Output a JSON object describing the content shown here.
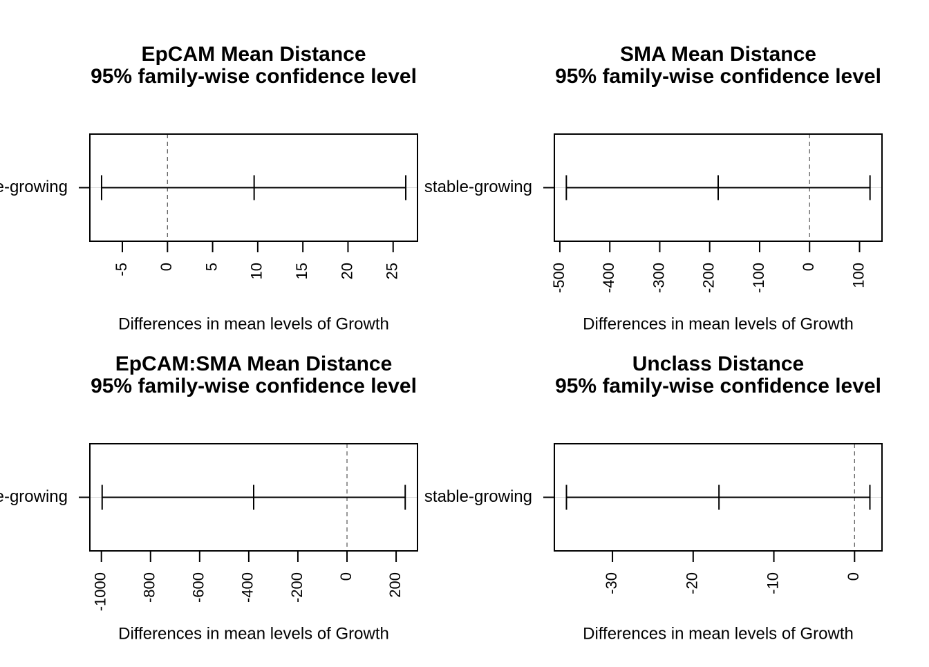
{
  "chart_data": [
    {
      "type": "errorbar",
      "title": "EpCAM Mean Distance",
      "subtitle": "95% family-wise confidence level",
      "xlabel": "Differences in mean levels of Growth",
      "comparison": "stable-growing",
      "estimate": 9.6,
      "lower": -7.3,
      "upper": 26.4,
      "xlim": [
        -8.6,
        27.7
      ],
      "ticks": [
        -5,
        0,
        5,
        10,
        15,
        20,
        25
      ],
      "tick_labels": [
        "-5",
        "0",
        "5",
        "10",
        "15",
        "20",
        "25"
      ],
      "zero_line": true
    },
    {
      "type": "errorbar",
      "title": "SMA Mean Distance",
      "subtitle": "95% family-wise confidence level",
      "xlabel": "Differences in mean levels of Growth",
      "comparison": "stable-growing",
      "estimate": -183,
      "lower": -487,
      "upper": 121,
      "xlim": [
        -511,
        145
      ],
      "ticks": [
        -500,
        -400,
        -300,
        -200,
        -100,
        0,
        100
      ],
      "tick_labels": [
        "-500",
        "-400",
        "-300",
        "-200",
        "-100",
        "0",
        "100"
      ],
      "zero_line": true
    },
    {
      "type": "errorbar",
      "title": "EpCAM:SMA Mean Distance",
      "subtitle": "95% family-wise confidence level",
      "xlabel": "Differences in mean levels of Growth",
      "comparison": "stable-growing",
      "estimate": -380,
      "lower": -997,
      "upper": 237,
      "xlim": [
        -1047,
        287
      ],
      "ticks": [
        -1000,
        -800,
        -600,
        -400,
        -200,
        0,
        200
      ],
      "tick_labels": [
        "-1000",
        "-800",
        "-600",
        "-400",
        "-200",
        "0",
        "200"
      ],
      "zero_line": true
    },
    {
      "type": "errorbar",
      "title": "Unclass Distance",
      "subtitle": "95% family-wise confidence level",
      "xlabel": "Differences in mean levels of Growth",
      "comparison": "stable-growing",
      "estimate": -16.8,
      "lower": -35.7,
      "upper": 1.9,
      "xlim": [
        -37.2,
        3.4
      ],
      "ticks": [
        -30,
        -20,
        -10,
        0
      ],
      "tick_labels": [
        "-30",
        "-20",
        "-10",
        "0"
      ],
      "zero_line": true
    }
  ]
}
